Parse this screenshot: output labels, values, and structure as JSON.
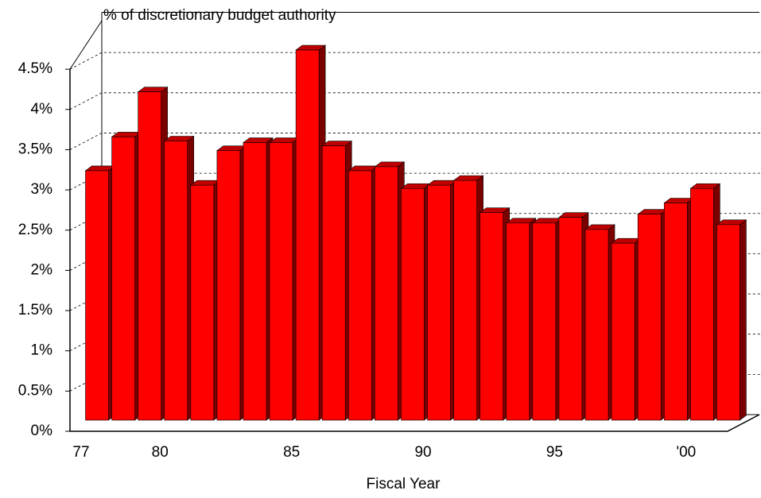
{
  "chart_data": {
    "type": "bar3d",
    "title": "% of discretionary budget authority",
    "x_label": "Fiscal Year",
    "categories": [
      "77",
      null,
      null,
      "80",
      null,
      null,
      null,
      null,
      "85",
      null,
      null,
      null,
      null,
      "90",
      null,
      null,
      null,
      null,
      "95",
      null,
      null,
      null,
      null,
      "'00",
      null
    ],
    "values": [
      3.1,
      3.52,
      4.08,
      3.47,
      2.92,
      3.35,
      3.45,
      3.45,
      4.6,
      3.41,
      3.1,
      3.15,
      2.88,
      2.92,
      2.98,
      2.58,
      2.45,
      2.45,
      2.52,
      2.37,
      2.2,
      2.56,
      2.7,
      2.88,
      2.43
    ],
    "color": "#ff0000",
    "ylim": [
      0,
      5
    ],
    "yticks": [
      {
        "value": 0,
        "label": "0%"
      },
      {
        "value": 0.5,
        "label": "0.5%"
      },
      {
        "value": 1,
        "label": "1%"
      },
      {
        "value": 1.5,
        "label": "1.5%"
      },
      {
        "value": 2,
        "label": "2%"
      },
      {
        "value": 2.5,
        "label": "2.5%"
      },
      {
        "value": 3,
        "label": "3%"
      },
      {
        "value": 3.5,
        "label": "3.5%"
      },
      {
        "value": 4,
        "label": "4%"
      },
      {
        "value": 4.5,
        "label": "4.5%"
      }
    ],
    "grid": true
  }
}
